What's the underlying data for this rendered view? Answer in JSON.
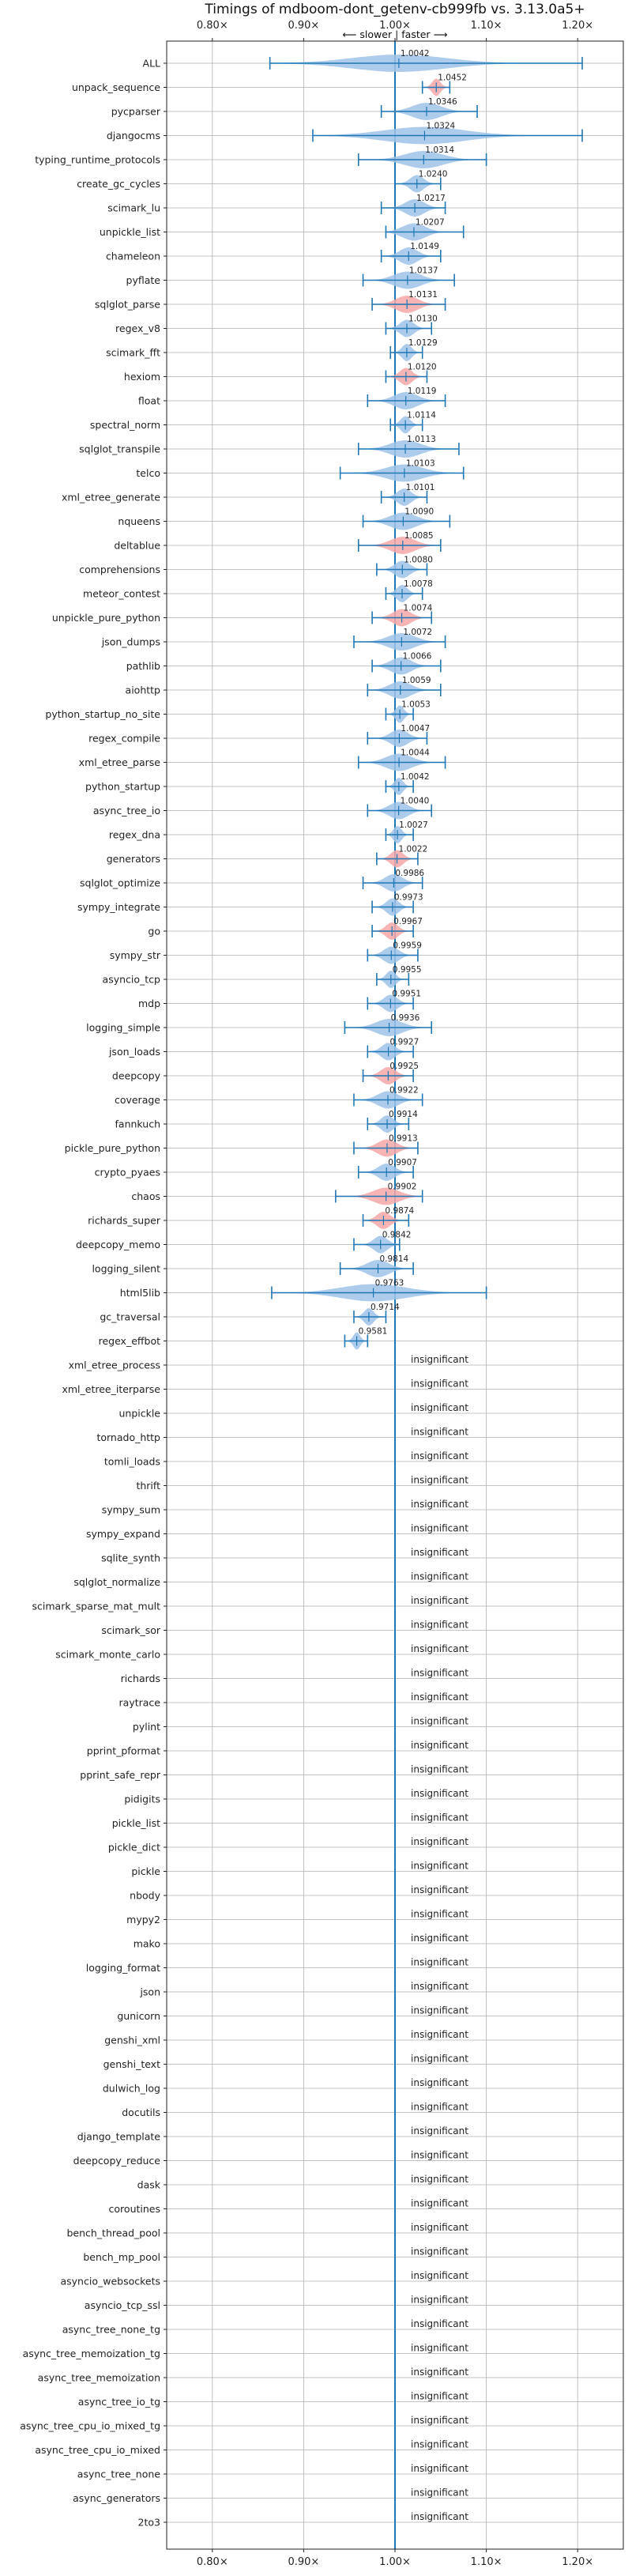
{
  "chart_data": {
    "type": "violin",
    "title": "Timings of mdboom-dont_getenv-cb999fb vs. 3.13.0a5+",
    "direction_label": "⟵ slower | faster ⟶",
    "xlim": [
      0.75,
      1.25
    ],
    "xticks": [
      {
        "value": 0.8,
        "label": "0.80×"
      },
      {
        "value": 0.9,
        "label": "0.90×"
      },
      {
        "value": 1.0,
        "label": "1.00×"
      },
      {
        "value": 1.1,
        "label": "1.10×"
      },
      {
        "value": 1.2,
        "label": "1.20×"
      }
    ],
    "grid": true,
    "colors": {
      "faster": "#9fc3e7",
      "slower": "#f4a7a7",
      "line": "#1f77b4",
      "grid": "#b0b0b0",
      "text": "#222222"
    },
    "significant": [
      {
        "name": "ALL",
        "mean": 1.0042,
        "label": "1.0042",
        "min": 0.863,
        "max": 1.205,
        "slower": false
      },
      {
        "name": "unpack_sequence",
        "mean": 1.0452,
        "label": "1.0452",
        "min": 1.03,
        "max": 1.06,
        "slower": true
      },
      {
        "name": "pycparser",
        "mean": 1.0346,
        "label": "1.0346",
        "min": 0.985,
        "max": 1.09,
        "slower": false
      },
      {
        "name": "djangocms",
        "mean": 1.0324,
        "label": "1.0324",
        "min": 0.91,
        "max": 1.205,
        "slower": false
      },
      {
        "name": "typing_runtime_protocols",
        "mean": 1.0314,
        "label": "1.0314",
        "min": 0.96,
        "max": 1.1,
        "slower": false
      },
      {
        "name": "create_gc_cycles",
        "mean": 1.024,
        "label": "1.0240",
        "min": 1.0,
        "max": 1.05,
        "slower": false
      },
      {
        "name": "scimark_lu",
        "mean": 1.0217,
        "label": "1.0217",
        "min": 0.985,
        "max": 1.055,
        "slower": false
      },
      {
        "name": "unpickle_list",
        "mean": 1.0207,
        "label": "1.0207",
        "min": 0.99,
        "max": 1.075,
        "slower": false
      },
      {
        "name": "chameleon",
        "mean": 1.0149,
        "label": "1.0149",
        "min": 0.985,
        "max": 1.05,
        "slower": false
      },
      {
        "name": "pyflate",
        "mean": 1.0137,
        "label": "1.0137",
        "min": 0.965,
        "max": 1.065,
        "slower": false
      },
      {
        "name": "sqlglot_parse",
        "mean": 1.0131,
        "label": "1.0131",
        "min": 0.975,
        "max": 1.055,
        "slower": true
      },
      {
        "name": "regex_v8",
        "mean": 1.013,
        "label": "1.0130",
        "min": 0.99,
        "max": 1.04,
        "slower": false
      },
      {
        "name": "scimark_fft",
        "mean": 1.0129,
        "label": "1.0129",
        "min": 0.995,
        "max": 1.03,
        "slower": false
      },
      {
        "name": "hexiom",
        "mean": 1.012,
        "label": "1.0120",
        "min": 0.99,
        "max": 1.035,
        "slower": true
      },
      {
        "name": "float",
        "mean": 1.0119,
        "label": "1.0119",
        "min": 0.97,
        "max": 1.055,
        "slower": false
      },
      {
        "name": "spectral_norm",
        "mean": 1.0114,
        "label": "1.0114",
        "min": 0.995,
        "max": 1.03,
        "slower": false
      },
      {
        "name": "sqlglot_transpile",
        "mean": 1.0113,
        "label": "1.0113",
        "min": 0.96,
        "max": 1.07,
        "slower": false
      },
      {
        "name": "telco",
        "mean": 1.0103,
        "label": "1.0103",
        "min": 0.94,
        "max": 1.075,
        "slower": false
      },
      {
        "name": "xml_etree_generate",
        "mean": 1.0101,
        "label": "1.0101",
        "min": 0.985,
        "max": 1.035,
        "slower": false
      },
      {
        "name": "nqueens",
        "mean": 1.009,
        "label": "1.0090",
        "min": 0.965,
        "max": 1.06,
        "slower": false
      },
      {
        "name": "deltablue",
        "mean": 1.0085,
        "label": "1.0085",
        "min": 0.96,
        "max": 1.05,
        "slower": true
      },
      {
        "name": "comprehensions",
        "mean": 1.008,
        "label": "1.0080",
        "min": 0.98,
        "max": 1.035,
        "slower": false
      },
      {
        "name": "meteor_contest",
        "mean": 1.0078,
        "label": "1.0078",
        "min": 0.99,
        "max": 1.03,
        "slower": false
      },
      {
        "name": "unpickle_pure_python",
        "mean": 1.0074,
        "label": "1.0074",
        "min": 0.975,
        "max": 1.04,
        "slower": true
      },
      {
        "name": "json_dumps",
        "mean": 1.0072,
        "label": "1.0072",
        "min": 0.955,
        "max": 1.055,
        "slower": false
      },
      {
        "name": "pathlib",
        "mean": 1.0066,
        "label": "1.0066",
        "min": 0.975,
        "max": 1.05,
        "slower": false
      },
      {
        "name": "aiohttp",
        "mean": 1.0059,
        "label": "1.0059",
        "min": 0.97,
        "max": 1.05,
        "slower": false
      },
      {
        "name": "python_startup_no_site",
        "mean": 1.0053,
        "label": "1.0053",
        "min": 0.99,
        "max": 1.02,
        "slower": false
      },
      {
        "name": "regex_compile",
        "mean": 1.0047,
        "label": "1.0047",
        "min": 0.97,
        "max": 1.035,
        "slower": false
      },
      {
        "name": "xml_etree_parse",
        "mean": 1.0044,
        "label": "1.0044",
        "min": 0.96,
        "max": 1.055,
        "slower": false
      },
      {
        "name": "python_startup",
        "mean": 1.0042,
        "label": "1.0042",
        "min": 0.99,
        "max": 1.02,
        "slower": false
      },
      {
        "name": "async_tree_io",
        "mean": 1.004,
        "label": "1.0040",
        "min": 0.97,
        "max": 1.04,
        "slower": false
      },
      {
        "name": "regex_dna",
        "mean": 1.0027,
        "label": "1.0027",
        "min": 0.99,
        "max": 1.02,
        "slower": false
      },
      {
        "name": "generators",
        "mean": 1.0022,
        "label": "1.0022",
        "min": 0.98,
        "max": 1.025,
        "slower": true
      },
      {
        "name": "sqlglot_optimize",
        "mean": 0.9986,
        "label": "0.9986",
        "min": 0.965,
        "max": 1.03,
        "slower": false
      },
      {
        "name": "sympy_integrate",
        "mean": 0.9973,
        "label": "0.9973",
        "min": 0.975,
        "max": 1.02,
        "slower": false
      },
      {
        "name": "go",
        "mean": 0.9967,
        "label": "0.9967",
        "min": 0.975,
        "max": 1.02,
        "slower": true
      },
      {
        "name": "sympy_str",
        "mean": 0.9959,
        "label": "0.9959",
        "min": 0.97,
        "max": 1.025,
        "slower": false
      },
      {
        "name": "asyncio_tcp",
        "mean": 0.9955,
        "label": "0.9955",
        "min": 0.98,
        "max": 1.015,
        "slower": false
      },
      {
        "name": "mdp",
        "mean": 0.9951,
        "label": "0.9951",
        "min": 0.97,
        "max": 1.02,
        "slower": false
      },
      {
        "name": "logging_simple",
        "mean": 0.9936,
        "label": "0.9936",
        "min": 0.945,
        "max": 1.04,
        "slower": false
      },
      {
        "name": "json_loads",
        "mean": 0.9927,
        "label": "0.9927",
        "min": 0.97,
        "max": 1.02,
        "slower": false
      },
      {
        "name": "deepcopy",
        "mean": 0.9925,
        "label": "0.9925",
        "min": 0.965,
        "max": 1.02,
        "slower": true
      },
      {
        "name": "coverage",
        "mean": 0.9922,
        "label": "0.9922",
        "min": 0.955,
        "max": 1.03,
        "slower": false
      },
      {
        "name": "fannkuch",
        "mean": 0.9914,
        "label": "0.9914",
        "min": 0.97,
        "max": 1.015,
        "slower": false
      },
      {
        "name": "pickle_pure_python",
        "mean": 0.9913,
        "label": "0.9913",
        "min": 0.955,
        "max": 1.025,
        "slower": true
      },
      {
        "name": "crypto_pyaes",
        "mean": 0.9907,
        "label": "0.9907",
        "min": 0.96,
        "max": 1.02,
        "slower": false
      },
      {
        "name": "chaos",
        "mean": 0.9902,
        "label": "0.9902",
        "min": 0.935,
        "max": 1.03,
        "slower": true
      },
      {
        "name": "richards_super",
        "mean": 0.9874,
        "label": "0.9874",
        "min": 0.965,
        "max": 1.015,
        "slower": true
      },
      {
        "name": "deepcopy_memo",
        "mean": 0.9842,
        "label": "0.9842",
        "min": 0.955,
        "max": 1.005,
        "slower": false
      },
      {
        "name": "logging_silent",
        "mean": 0.9814,
        "label": "0.9814",
        "min": 0.94,
        "max": 1.02,
        "slower": false
      },
      {
        "name": "html5lib",
        "mean": 0.9763,
        "label": "0.9763",
        "min": 0.865,
        "max": 1.1,
        "slower": false
      },
      {
        "name": "gc_traversal",
        "mean": 0.9714,
        "label": "0.9714",
        "min": 0.955,
        "max": 0.99,
        "slower": false
      },
      {
        "name": "regex_effbot",
        "mean": 0.9581,
        "label": "0.9581",
        "min": 0.945,
        "max": 0.97,
        "slower": false
      }
    ],
    "insignificant_label": "insignificant",
    "insignificant": [
      "xml_etree_process",
      "xml_etree_iterparse",
      "unpickle",
      "tornado_http",
      "tomli_loads",
      "thrift",
      "sympy_sum",
      "sympy_expand",
      "sqlite_synth",
      "sqlglot_normalize",
      "scimark_sparse_mat_mult",
      "scimark_sor",
      "scimark_monte_carlo",
      "richards",
      "raytrace",
      "pylint",
      "pprint_pformat",
      "pprint_safe_repr",
      "pidigits",
      "pickle_list",
      "pickle_dict",
      "pickle",
      "nbody",
      "mypy2",
      "mako",
      "logging_format",
      "json",
      "gunicorn",
      "genshi_xml",
      "genshi_text",
      "dulwich_log",
      "docutils",
      "django_template",
      "deepcopy_reduce",
      "dask",
      "coroutines",
      "bench_thread_pool",
      "bench_mp_pool",
      "asyncio_websockets",
      "asyncio_tcp_ssl",
      "async_tree_none_tg",
      "async_tree_memoization_tg",
      "async_tree_memoization",
      "async_tree_io_tg",
      "async_tree_cpu_io_mixed_tg",
      "async_tree_cpu_io_mixed",
      "async_tree_none",
      "async_generators",
      "2to3"
    ]
  }
}
